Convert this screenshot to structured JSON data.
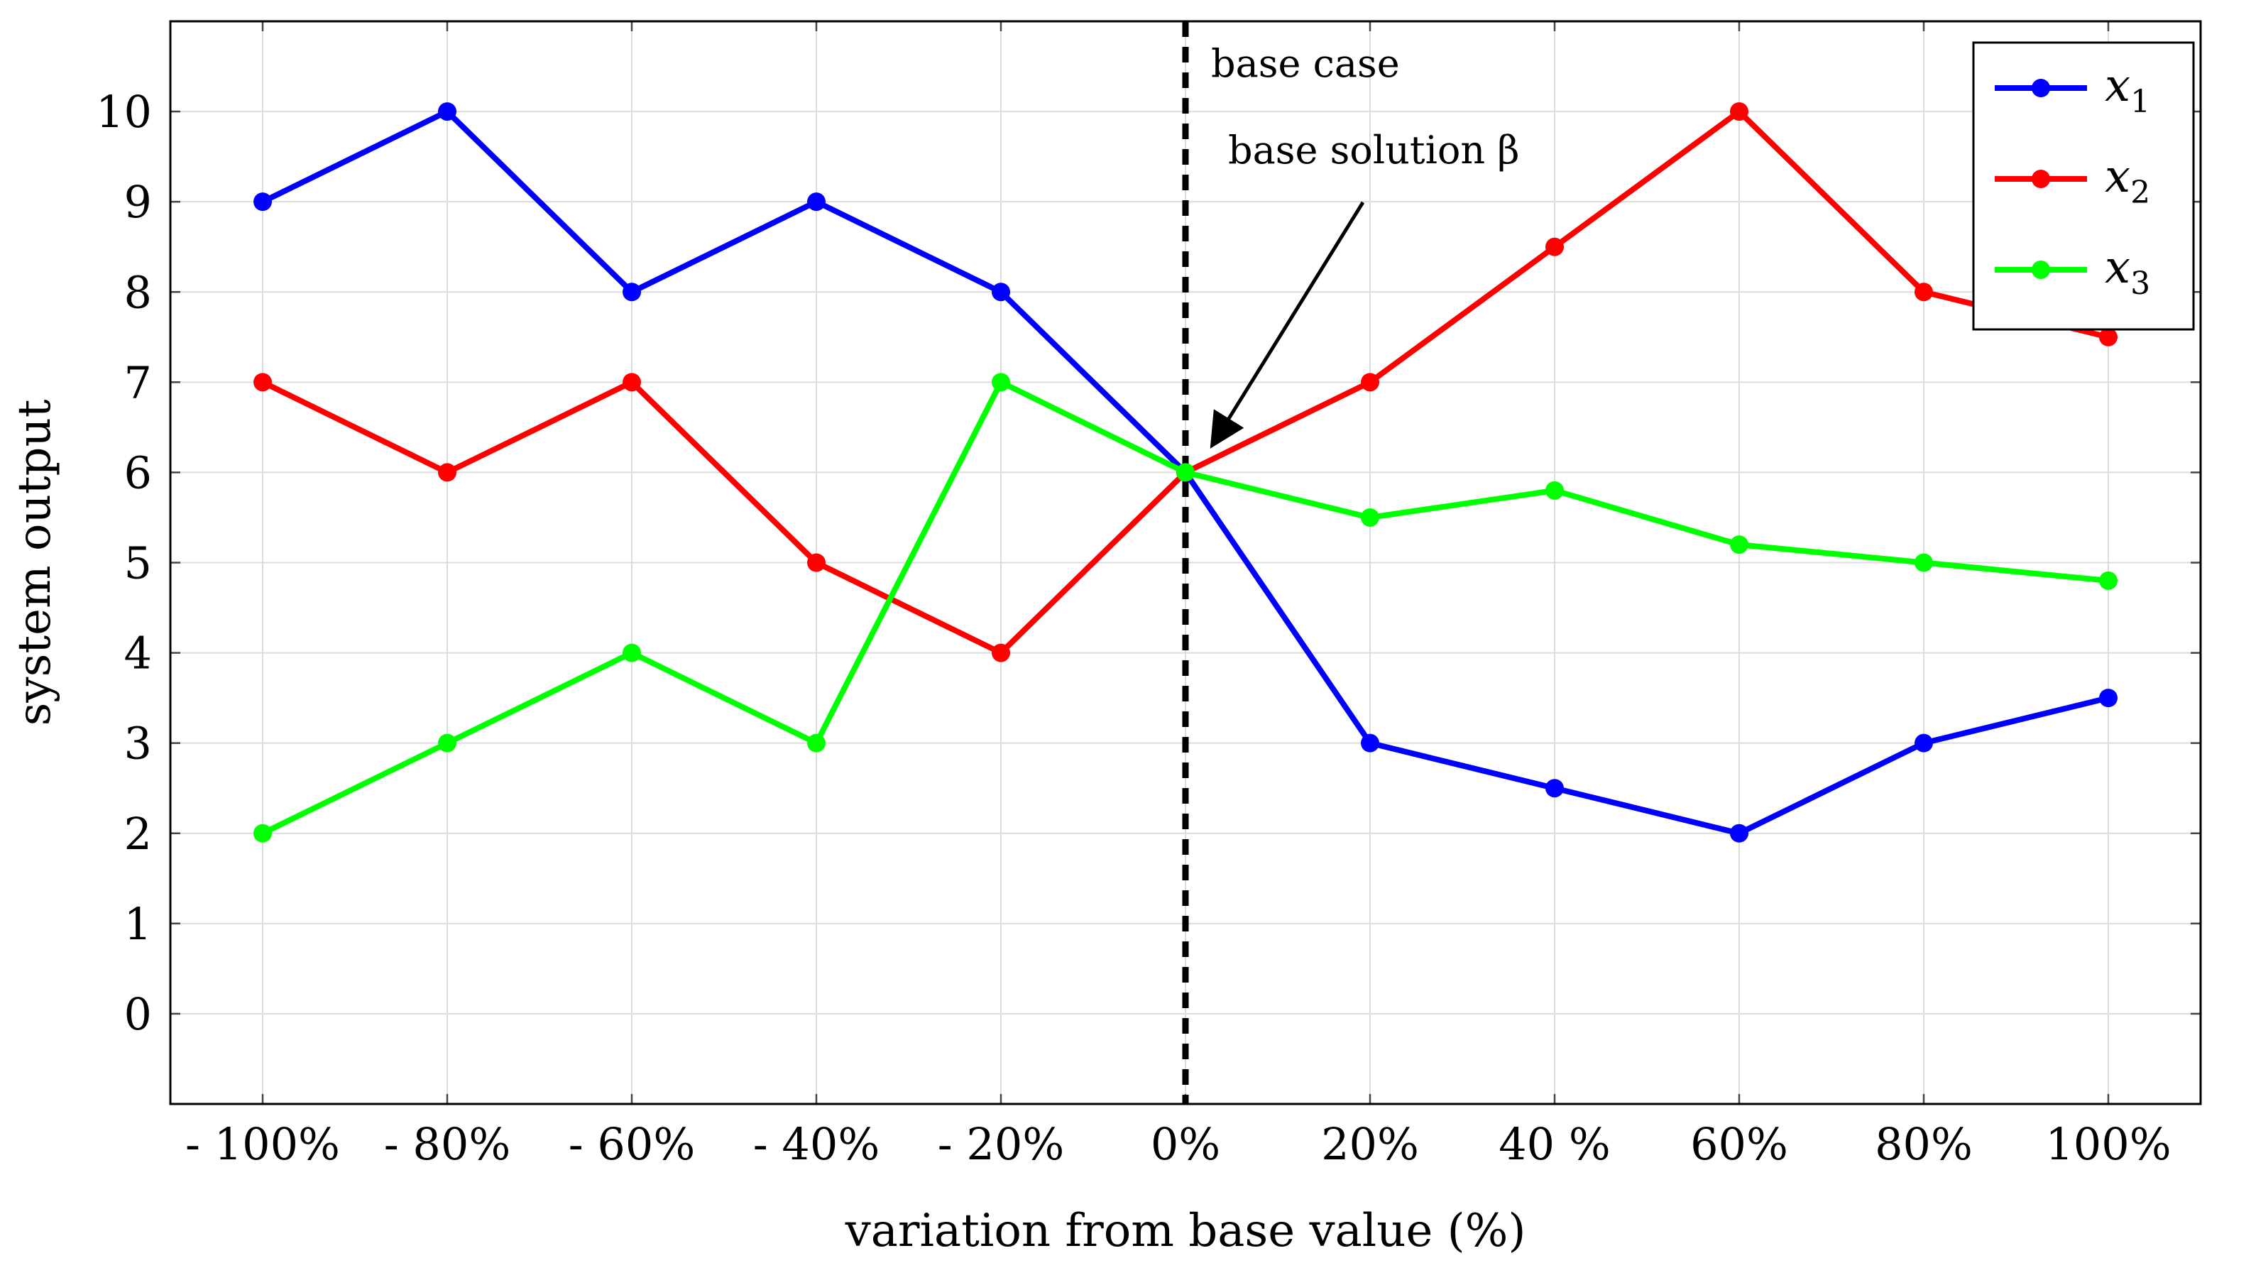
{
  "chart_data": {
    "type": "line",
    "xlabel": "variation from base value (%)",
    "ylabel": "system output",
    "categories": [
      "- 100%",
      "- 80%",
      "- 60%",
      "- 40%",
      "- 20%",
      "0%",
      "20%",
      "40 %",
      "60%",
      "80%",
      "100%"
    ],
    "x": [
      -100,
      -80,
      -60,
      -40,
      -20,
      0,
      20,
      40,
      60,
      80,
      100
    ],
    "xlim": [
      -110,
      110
    ],
    "ylim": [
      -1,
      11
    ],
    "yticks": [
      0,
      1,
      2,
      3,
      4,
      5,
      6,
      7,
      8,
      9,
      10
    ],
    "grid": true,
    "legend_position": "top-right",
    "series": [
      {
        "name": "x",
        "subscript": "1",
        "color": "#0000ff",
        "values": [
          9,
          10,
          8,
          9,
          8,
          6,
          3,
          2.5,
          2,
          3,
          3.5
        ]
      },
      {
        "name": "x",
        "subscript": "2",
        "color": "#ff0000",
        "values": [
          7,
          6,
          7,
          5,
          4,
          6,
          7,
          8.5,
          10,
          8,
          7.5
        ]
      },
      {
        "name": "x",
        "subscript": "3",
        "color": "#00ff00",
        "values": [
          2,
          3,
          4,
          3,
          7,
          6,
          5.5,
          5.8,
          5.2,
          5,
          4.8
        ]
      }
    ],
    "annotations": {
      "vline_x": 0,
      "vline_label": "base case",
      "arrow_label": "base solution β",
      "arrow_target": {
        "x": 0,
        "y": 6
      }
    }
  }
}
